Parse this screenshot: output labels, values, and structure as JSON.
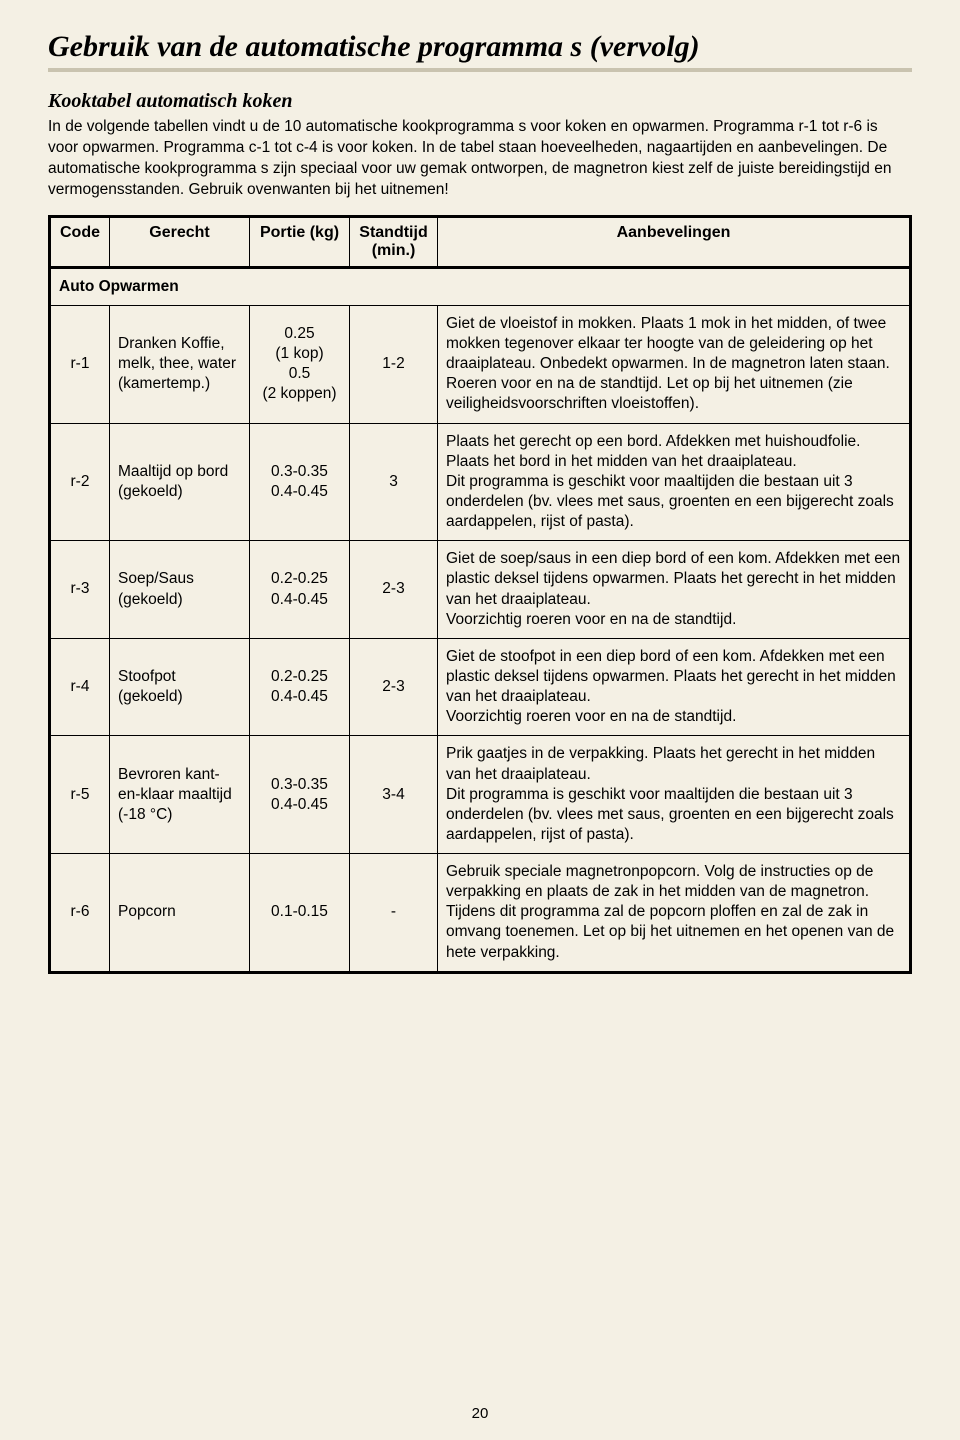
{
  "page": {
    "title": "Gebruik van de automatische programma s (vervolg)",
    "subheading": "Kooktabel automatisch koken",
    "intro": "In de volgende tabellen vindt u de 10 automatische kookprogramma s voor koken en opwarmen. Programma r-1 tot r-6 is voor opwarmen. Programma c-1 tot c-4 is voor koken. In de tabel staan hoeveelheden, nagaartijden en aanbevelingen. De automatische kookprogramma s zijn speciaal voor uw gemak ontworpen, de magnetron kiest zelf de juiste bereidingstijd en vermogensstanden. Gebruik ovenwanten bij het uitnemen!",
    "page_number": "20"
  },
  "headers": {
    "code": "Code",
    "dish": "Gerecht",
    "portion": "Portie (kg)",
    "stand": "Standtijd (min.)",
    "rec": "Aanbevelingen"
  },
  "section_label": "Auto Opwarmen",
  "rows": [
    {
      "code": "r-1",
      "dish": "Dranken Koffie, melk, thee, water (kamertemp.)",
      "portion": "0.25\n(1 kop)\n0.5\n(2 koppen)",
      "stand": "1-2",
      "rec": "Giet de vloeistof in mokken. Plaats 1 mok in het midden, of twee mokken tegenover elkaar ter hoogte van de geleidering op het draaiplateau. Onbedekt opwarmen. In de magnetron laten staan. Roeren voor en na de standtijd. Let op bij het uitnemen (zie veiligheidsvoorschriften vloeistoffen)."
    },
    {
      "code": "r-2",
      "dish": "Maaltijd op bord (gekoeld)",
      "portion": "0.3-0.35\n0.4-0.45",
      "stand": "3",
      "rec": "Plaats het gerecht op een bord. Afdekken met huishoudfolie. Plaats het bord in het midden van het draaiplateau.\nDit programma is geschikt voor maaltijden die bestaan uit 3 onderdelen (bv. vlees met saus, groenten en een bijgerecht zoals aardappelen, rijst of pasta)."
    },
    {
      "code": "r-3",
      "dish": "Soep/Saus (gekoeld)",
      "portion": "0.2-0.25\n0.4-0.45",
      "stand": "2-3",
      "rec": "Giet de soep/saus in een diep bord of een kom. Afdekken met een plastic deksel tijdens opwarmen. Plaats het gerecht in het midden van het draaiplateau.\nVoorzichtig roeren voor en na de standtijd."
    },
    {
      "code": "r-4",
      "dish": "Stoofpot (gekoeld)",
      "portion": "0.2-0.25\n0.4-0.45",
      "stand": "2-3",
      "rec": "Giet de stoofpot in een diep bord of een kom. Afdekken met een plastic deksel tijdens opwarmen. Plaats het gerecht in het midden van het draaiplateau.\nVoorzichtig roeren voor en na de standtijd."
    },
    {
      "code": "r-5",
      "dish": "Bevroren kant-en-klaar maaltijd (-18 °C)",
      "portion": "0.3-0.35\n0.4-0.45",
      "stand": "3-4",
      "rec": "Prik gaatjes in de verpakking. Plaats het gerecht in het midden van het draaiplateau.\nDit programma is geschikt voor maaltijden die bestaan uit 3 onderdelen (bv. vlees met saus, groenten en een bijgerecht zoals aardappelen, rijst of pasta)."
    },
    {
      "code": "r-6",
      "dish": "Popcorn",
      "portion": "0.1-0.15",
      "stand": "-",
      "rec": "Gebruik speciale magnetronpopcorn. Volg de instructies op de verpakking en plaats de zak in het midden van de magnetron. Tijdens dit programma zal de popcorn ploffen en zal de zak in omvang toenemen. Let op bij het uitnemen en het openen van de hete verpakking."
    }
  ]
}
